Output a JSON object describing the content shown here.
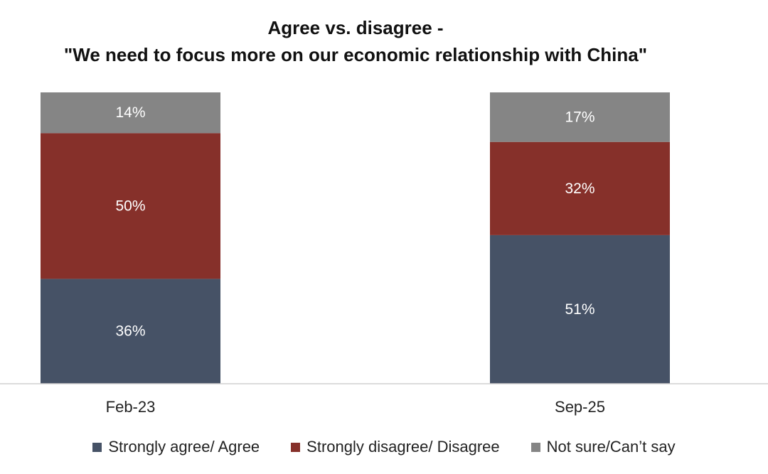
{
  "chart_data": {
    "type": "bar",
    "stacked": true,
    "title": "Agree vs. disagree -",
    "subtitle": "\"We need to focus more on our economic relationship with China\"",
    "categories": [
      "Feb-23",
      "Sep-25"
    ],
    "ylim": [
      0,
      100
    ],
    "grid": false,
    "legend_position": "bottom",
    "series": [
      {
        "name": "Strongly agree/ Agree",
        "color": "#465266",
        "values": [
          36,
          51
        ],
        "labels": [
          "36%",
          "51%"
        ]
      },
      {
        "name": "Strongly disagree/ Disagree",
        "color": "#86302A",
        "values": [
          50,
          32
        ],
        "labels": [
          "50%",
          "32%"
        ]
      },
      {
        "name": "Not sure/Can’t say",
        "color": "#858585",
        "values": [
          14,
          17
        ],
        "labels": [
          "14%",
          "17%"
        ]
      }
    ]
  }
}
